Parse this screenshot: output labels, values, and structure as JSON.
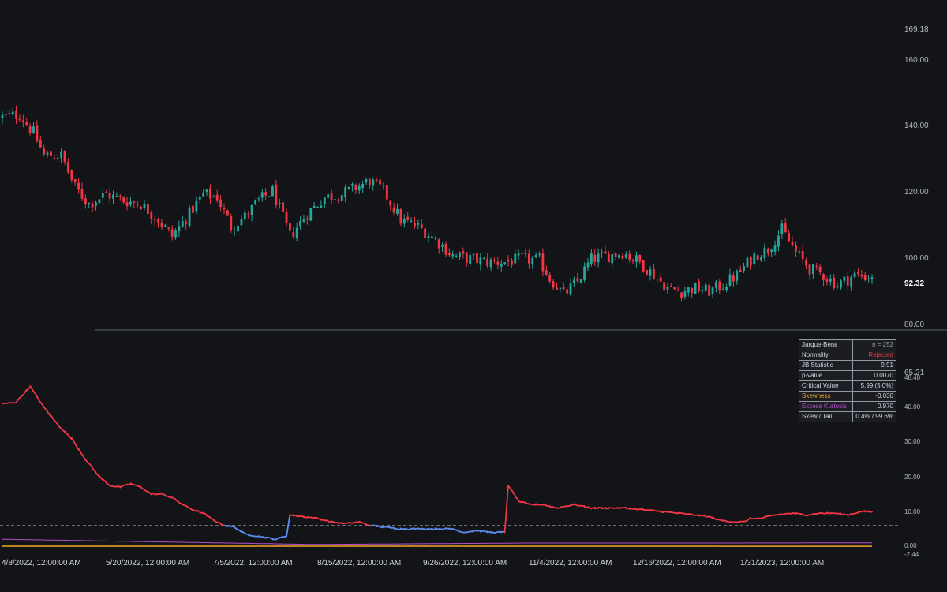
{
  "colors": {
    "background": "#131418",
    "up": "#26a69a",
    "down": "#f23645",
    "jb_line_rejected": "#f23645",
    "jb_line_normal": "#5b8def",
    "critical_line": "#787b86",
    "skewness": "#f5a623",
    "kurtosis": "#b24fd0",
    "separator": "#5d606b",
    "last_price_label": "#ffffff"
  },
  "price_axis": {
    "ticks": [
      "169.18",
      "160.00",
      "140.00",
      "120.00",
      "100.00",
      "80.00"
    ],
    "last_price": "92.32"
  },
  "indicator_axis": {
    "ticks": [
      "65.21",
      "48.48",
      "40.00",
      "30.00",
      "20.00",
      "10.00",
      "0.00",
      "-2.44"
    ]
  },
  "time_axis": {
    "labels": [
      "4/8/2022, 12:00:00 AM",
      "5/20/2022, 12:00:00 AM",
      "7/5/2022, 12:00:00 AM",
      "8/15/2022, 12:00:00 AM",
      "9/26/2022, 12:00:00 AM",
      "11/4/2022, 12:00:00 AM",
      "12/16/2022, 12:00:00 AM",
      "1/31/2023, 12:00:00 AM"
    ]
  },
  "stats_table": {
    "rows": [
      {
        "label": "Jarque-Bera",
        "value": "n = 252",
        "label_color": "#d1d4dc",
        "value_color": "#9598a1"
      },
      {
        "label": "Normality",
        "value": "Rejected",
        "label_color": "#d1d4dc",
        "value_color": "#f23645"
      },
      {
        "label": "JB Statistic",
        "value": "9.91",
        "label_color": "#d1d4dc",
        "value_color": "#d1d4dc"
      },
      {
        "label": "p-value",
        "value": "0.0070",
        "label_color": "#d1d4dc",
        "value_color": "#d1d4dc"
      },
      {
        "label": "Critical Value",
        "value": "5.99 (5.0%)",
        "label_color": "#d1d4dc",
        "value_color": "#d1d4dc"
      },
      {
        "label": "Skewness",
        "value": "-0.030",
        "label_color": "#f5a623",
        "value_color": "#d1d4dc"
      },
      {
        "label": "Excess Kurtosis",
        "value": "0.970",
        "label_color": "#b24fd0",
        "value_color": "#d1d4dc"
      },
      {
        "label": "Skew / Tail",
        "value": "0.4% / 99.6%",
        "label_color": "#d1d4dc",
        "value_color": "#d1d4dc"
      }
    ]
  },
  "chart_data": [
    {
      "type": "candlestick",
      "price_range": [
        76.6,
        169.18
      ],
      "bars": 252,
      "last_price": 92.32,
      "close_path": [
        [
          0,
          141.8
        ],
        [
          5,
          142.5
        ],
        [
          9,
          137
        ],
        [
          12,
          130
        ],
        [
          17,
          130
        ],
        [
          21,
          120
        ],
        [
          25,
          115
        ],
        [
          30,
          118
        ],
        [
          35,
          116
        ],
        [
          40,
          115
        ],
        [
          45,
          110
        ],
        [
          49,
          105
        ],
        [
          54,
          112
        ],
        [
          58,
          118
        ],
        [
          62,
          117
        ],
        [
          66,
          108
        ],
        [
          70,
          111
        ],
        [
          74,
          116
        ],
        [
          78,
          119
        ],
        [
          83,
          105
        ],
        [
          88,
          112
        ],
        [
          93,
          117
        ],
        [
          98,
          118
        ],
        [
          102,
          120
        ],
        [
          106,
          122
        ],
        [
          110,
          119
        ],
        [
          115,
          110
        ],
        [
          120,
          108
        ],
        [
          125,
          104
        ],
        [
          130,
          99
        ],
        [
          135,
          98
        ],
        [
          140,
          97
        ],
        [
          145,
          97
        ],
        [
          150,
          98
        ],
        [
          155,
          97.5
        ],
        [
          158,
          92
        ],
        [
          162,
          87
        ],
        [
          166,
          91
        ],
        [
          170,
          98
        ],
        [
          175,
          99
        ],
        [
          179,
          100
        ],
        [
          184,
          97
        ],
        [
          188,
          93
        ],
        [
          192,
          89
        ],
        [
          196,
          88
        ],
        [
          200,
          89
        ],
        [
          204,
          88
        ],
        [
          208,
          90
        ],
        [
          212,
          93
        ],
        [
          217,
          99
        ],
        [
          221,
          101
        ],
        [
          225,
          107
        ],
        [
          229,
          100
        ],
        [
          233,
          95
        ],
        [
          237,
          93
        ],
        [
          241,
          90
        ],
        [
          246,
          93
        ],
        [
          251,
          92.32
        ]
      ]
    },
    {
      "type": "line",
      "y_range": [
        -2.44,
        65.21
      ],
      "critical_value": 5.99,
      "series": [
        {
          "key": "jb",
          "values": [
            [
              0,
              41
            ],
            [
              4,
              41.5
            ],
            [
              8,
              46
            ],
            [
              12,
              40
            ],
            [
              16,
              35
            ],
            [
              20,
              31
            ],
            [
              24,
              25
            ],
            [
              28,
              20
            ],
            [
              31,
              17.5
            ],
            [
              34,
              17
            ],
            [
              37,
              18
            ],
            [
              40,
              17
            ],
            [
              43,
              15
            ],
            [
              46,
              15
            ],
            [
              49,
              14
            ],
            [
              52,
              12
            ],
            [
              55,
              10.5
            ],
            [
              58,
              9.5
            ],
            [
              61,
              7.5
            ],
            [
              64,
              6
            ],
            [
              67,
              5.5
            ],
            [
              70,
              3.5
            ],
            [
              73,
              3
            ],
            [
              76,
              2.5
            ],
            [
              79,
              2
            ],
            [
              82,
              3
            ],
            [
              83,
              9
            ],
            [
              87,
              8.5
            ],
            [
              91,
              8
            ],
            [
              95,
              7
            ],
            [
              99,
              6.5
            ],
            [
              103,
              7
            ],
            [
              106,
              6
            ],
            [
              110,
              5.5
            ],
            [
              115,
              5
            ],
            [
              120,
              5
            ],
            [
              125,
              5
            ],
            [
              130,
              5
            ],
            [
              133,
              4
            ],
            [
              137,
              4.5
            ],
            [
              141,
              4
            ],
            [
              145,
              4
            ],
            [
              146,
              17.5
            ],
            [
              149,
              13
            ],
            [
              152,
              12
            ],
            [
              156,
              12
            ],
            [
              160,
              11
            ],
            [
              165,
              12
            ],
            [
              170,
              11
            ],
            [
              175,
              11
            ],
            [
              180,
              11
            ],
            [
              185,
              10.5
            ],
            [
              190,
              10
            ],
            [
              195,
              9.5
            ],
            [
              200,
              9
            ],
            [
              204,
              8.5
            ],
            [
              207,
              7.5
            ],
            [
              211,
              7
            ],
            [
              214,
              7
            ],
            [
              216,
              8
            ],
            [
              219,
              8
            ],
            [
              223,
              9
            ],
            [
              228,
              9.5
            ],
            [
              232,
              9
            ],
            [
              236,
              9.5
            ],
            [
              240,
              9.5
            ],
            [
              244,
              9
            ],
            [
              248,
              10
            ],
            [
              251,
              9.91
            ]
          ]
        },
        {
          "key": "skewness",
          "values": [
            [
              0,
              0
            ],
            [
              60,
              0
            ],
            [
              120,
              0
            ],
            [
              180,
              0
            ],
            [
              251,
              -0.03
            ]
          ]
        },
        {
          "key": "kurtosis",
          "values": [
            [
              0,
              2
            ],
            [
              30,
              1.5
            ],
            [
              60,
              1
            ],
            [
              90,
              0.5
            ],
            [
              150,
              0.9
            ],
            [
              200,
              0.9
            ],
            [
              251,
              0.97
            ]
          ]
        }
      ]
    }
  ]
}
